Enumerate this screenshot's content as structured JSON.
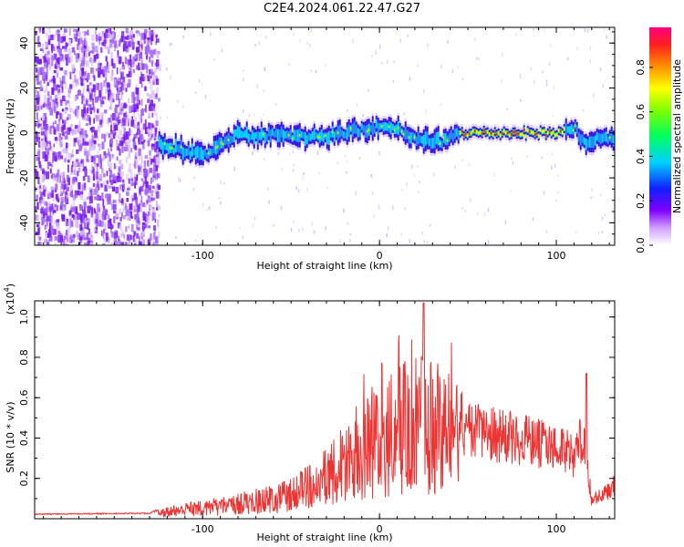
{
  "title": "C2E4.2024.061.22.47.G27",
  "chart_data": [
    {
      "type": "heatmap",
      "name": "spectrogram",
      "xlabel": "Height of straight line (km)",
      "ylabel": "Frequency (Hz)",
      "xlim": [
        -195,
        133
      ],
      "ylim": [
        -50,
        47
      ],
      "xticks": [
        -100,
        0,
        100
      ],
      "xtick_labels": [
        "-100",
        "0",
        "100"
      ],
      "yticks": [
        -40,
        -20,
        0,
        20,
        40
      ],
      "ytick_labels": [
        "-40",
        "-20",
        "0",
        "20",
        "40"
      ],
      "colorbar": {
        "label": "Normalized spectral amplitude",
        "ticks": [
          0.0,
          0.2,
          0.4,
          0.6,
          0.8
        ],
        "tick_labels": [
          "0.0",
          "0.2",
          "0.4",
          "0.6",
          "0.8"
        ],
        "range": [
          0,
          0.98
        ]
      },
      "ridge_center_hz": [
        {
          "x": -125,
          "f": -5
        },
        {
          "x": -110,
          "f": -8
        },
        {
          "x": -100,
          "f": -10
        },
        {
          "x": -90,
          "f": -4
        },
        {
          "x": -80,
          "f": 0
        },
        {
          "x": -70,
          "f": -2
        },
        {
          "x": -60,
          "f": 0
        },
        {
          "x": -40,
          "f": -2
        },
        {
          "x": -20,
          "f": 0
        },
        {
          "x": 0,
          "f": 3
        },
        {
          "x": 10,
          "f": 1
        },
        {
          "x": 20,
          "f": -3
        },
        {
          "x": 35,
          "f": -4
        },
        {
          "x": 45,
          "f": 0
        },
        {
          "x": 100,
          "f": 0
        },
        {
          "x": 110,
          "f": 2
        },
        {
          "x": 116,
          "f": -5
        },
        {
          "x": 125,
          "f": -2
        },
        {
          "x": 133,
          "f": -2
        }
      ]
    },
    {
      "type": "line",
      "name": "snr",
      "xlabel": "Height of straight line (km)",
      "ylabel": "SNR (10 * v/v)",
      "yscale_label": "(x10",
      "yscale_exp": "4",
      "xlim": [
        -195,
        133
      ],
      "ylim": [
        0,
        1.08
      ],
      "xticks": [
        -100,
        0,
        100
      ],
      "xtick_labels": [
        "-100",
        "0",
        "100"
      ],
      "yticks": [
        0.2,
        0.4,
        0.6,
        0.8,
        1.0
      ],
      "ytick_labels": [
        "0.2",
        "0.4",
        "0.6",
        "0.8",
        "1.0"
      ],
      "color": "#ee3333",
      "envelope": [
        {
          "x": -195,
          "y": 0.025
        },
        {
          "x": -130,
          "y": 0.03
        },
        {
          "x": -125,
          "y": 0.05
        },
        {
          "x": -110,
          "y": 0.08
        },
        {
          "x": -90,
          "y": 0.11
        },
        {
          "x": -70,
          "y": 0.15
        },
        {
          "x": -50,
          "y": 0.2
        },
        {
          "x": -35,
          "y": 0.3
        },
        {
          "x": -25,
          "y": 0.42
        },
        {
          "x": -15,
          "y": 0.55
        },
        {
          "x": 0,
          "y": 0.65
        },
        {
          "x": 10,
          "y": 0.75
        },
        {
          "x": 20,
          "y": 0.82
        },
        {
          "x": 30,
          "y": 0.8
        },
        {
          "x": 45,
          "y": 0.66
        },
        {
          "x": 50,
          "y": 0.58
        },
        {
          "x": 70,
          "y": 0.55
        },
        {
          "x": 90,
          "y": 0.5
        },
        {
          "x": 105,
          "y": 0.46
        },
        {
          "x": 110,
          "y": 0.4
        },
        {
          "x": 115,
          "y": 0.55
        },
        {
          "x": 117,
          "y": 0.38
        },
        {
          "x": 120,
          "y": 0.12
        },
        {
          "x": 125,
          "y": 0.15
        },
        {
          "x": 133,
          "y": 0.22
        }
      ],
      "peaks": [
        {
          "x": 25,
          "y": 1.07
        },
        {
          "x": 117,
          "y": 0.72
        }
      ]
    }
  ]
}
